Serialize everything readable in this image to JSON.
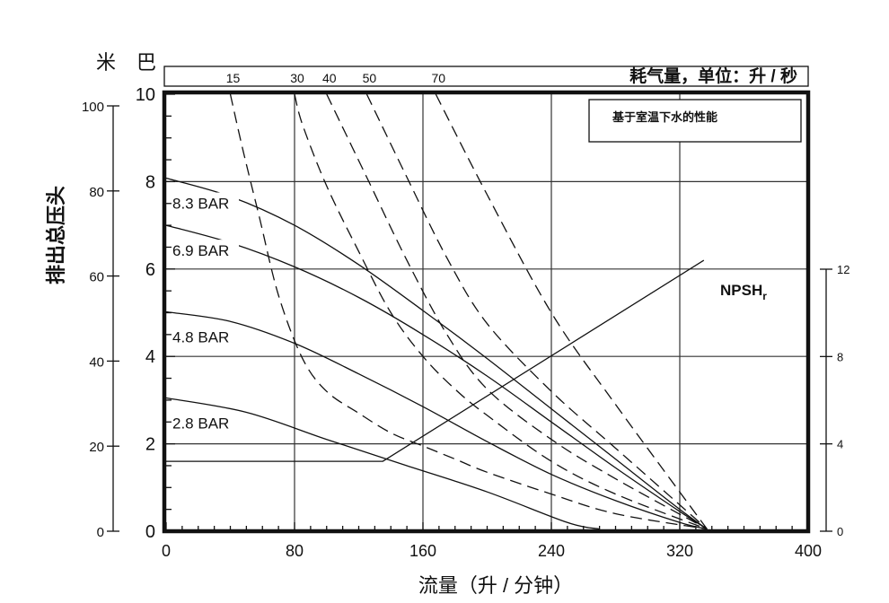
{
  "chart_data": {
    "type": "line",
    "xlabel": "流量（升 / 分钟）",
    "xlim": [
      0,
      400
    ],
    "x_ticks": [
      "0",
      "80",
      "160",
      "240",
      "320",
      "400"
    ],
    "ylabel": "排出总压头",
    "y_unit_meter": "米",
    "y_unit_bar": "巴",
    "ylim_bar": [
      0,
      10
    ],
    "ylim_meter": [
      0,
      100
    ],
    "y_ticks_bar": [
      "0",
      "2",
      "4",
      "6",
      "8",
      "10"
    ],
    "y_ticks_meter": [
      "0",
      "20",
      "40",
      "60",
      "80",
      "100"
    ],
    "right_ylim": [
      0,
      12
    ],
    "right_ticks": [
      "0",
      "4",
      "8",
      "12"
    ],
    "air_axis_label": "耗气量，单位：升 / 秒",
    "note": "基于室温下水的性能",
    "grid": true,
    "pressure_curves": [
      {
        "label": "8.3 BAR",
        "x": [
          0,
          40,
          80,
          120,
          160,
          200,
          240,
          280,
          320,
          337
        ],
        "y": [
          8.08,
          7.66,
          7.0,
          6.1,
          5.05,
          3.95,
          2.8,
          1.65,
          0.5,
          0.05
        ]
      },
      {
        "label": "6.9 BAR",
        "x": [
          0,
          40,
          80,
          120,
          160,
          200,
          240,
          280,
          320,
          337
        ],
        "y": [
          7.0,
          6.6,
          6.05,
          5.35,
          4.5,
          3.55,
          2.5,
          1.45,
          0.45,
          0.05
        ]
      },
      {
        "label": "4.8 BAR",
        "x": [
          0,
          40,
          80,
          120,
          160,
          200,
          240,
          280,
          320,
          337
        ],
        "y": [
          5.02,
          4.8,
          4.3,
          3.6,
          2.85,
          2.05,
          1.3,
          0.7,
          0.2,
          0.05
        ]
      },
      {
        "label": "2.8 BAR",
        "x": [
          0,
          50,
          100,
          150,
          200,
          250,
          270
        ],
        "y": [
          3.05,
          2.72,
          2.1,
          1.5,
          0.9,
          0.2,
          0.05
        ]
      }
    ],
    "air_curves": [
      {
        "label": "15",
        "x": [
          40,
          48,
          58,
          70,
          85,
          100,
          120,
          140,
          160,
          180,
          200,
          240,
          280,
          337
        ],
        "y": [
          10,
          8.7,
          7.2,
          5.4,
          3.95,
          3.2,
          2.7,
          2.25,
          1.95,
          1.65,
          1.35,
          0.85,
          0.4,
          0.05
        ]
      },
      {
        "label": "30",
        "x": [
          80,
          85,
          100,
          120,
          140,
          160,
          180,
          200,
          240,
          280,
          337
        ],
        "y": [
          10,
          9.3,
          7.9,
          6.4,
          5.0,
          4.0,
          3.25,
          2.65,
          1.6,
          0.85,
          0.05
        ]
      },
      {
        "label": "40",
        "x": [
          100,
          125,
          150,
          175,
          200,
          240,
          280,
          337
        ],
        "y": [
          10,
          8.1,
          6.2,
          4.5,
          3.25,
          2.1,
          1.2,
          0.05
        ]
      },
      {
        "label": "50",
        "x": [
          125,
          150,
          175,
          200,
          240,
          280,
          337
        ],
        "y": [
          10,
          8.1,
          6.25,
          4.75,
          3.2,
          1.9,
          0.05
        ]
      },
      {
        "label": "70",
        "x": [
          168,
          200,
          240,
          280,
          337
        ],
        "y": [
          10,
          7.7,
          5.0,
          2.9,
          0.05
        ]
      }
    ],
    "npsh": {
      "label": "NPSH",
      "subscript": "r",
      "x": [
        0,
        135,
        335
      ],
      "y": [
        1.6,
        1.6,
        6.2
      ]
    }
  }
}
